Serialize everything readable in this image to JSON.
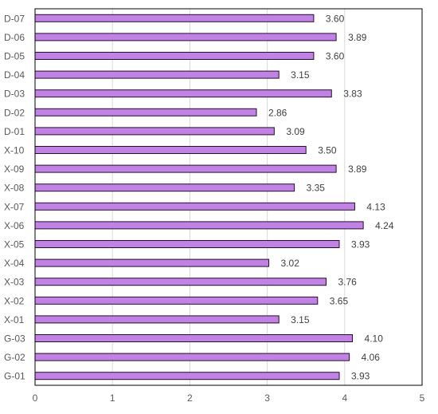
{
  "chart_data": {
    "type": "bar",
    "orientation": "horizontal",
    "title": "",
    "xlabel": "",
    "ylabel": "",
    "categories": [
      "G-01",
      "G-02",
      "G-03",
      "X-01",
      "X-02",
      "X-03",
      "X-04",
      "X-05",
      "X-06",
      "X-07",
      "X-08",
      "X-09",
      "X-10",
      "D-01",
      "D-02",
      "D-03",
      "D-04",
      "D-05",
      "D-06",
      "D-07"
    ],
    "values": [
      3.93,
      4.06,
      4.1,
      3.15,
      3.65,
      3.76,
      3.02,
      3.93,
      4.24,
      4.13,
      3.35,
      3.89,
      3.5,
      3.09,
      2.86,
      3.83,
      3.15,
      3.6,
      3.89,
      3.6
    ],
    "value_labels": [
      "3.93",
      "4.06",
      "4.10",
      "3.15",
      "3.65",
      "3.76",
      "3.02",
      "3.93",
      "4.24",
      "4.13",
      "3.35",
      "3.89",
      "3.50",
      "3.09",
      "2.86",
      "3.83",
      "3.15",
      "3.60",
      "3.89",
      "3.60"
    ],
    "xlim": [
      0,
      5
    ],
    "xticks": [
      "0",
      "1",
      "2",
      "3",
      "4",
      "5"
    ],
    "grid": true,
    "legend": "none",
    "bar_color": "#c183e3",
    "bar_edge_color": "#2b0a33"
  }
}
